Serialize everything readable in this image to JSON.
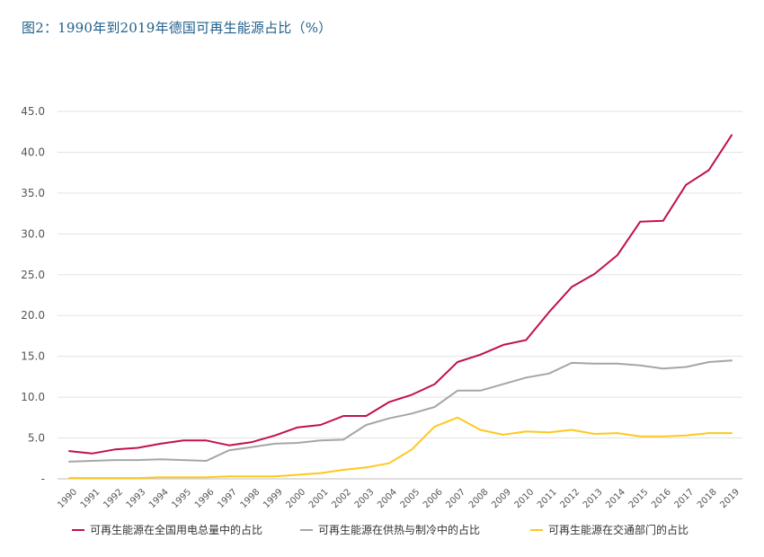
{
  "chart_data": {
    "type": "line",
    "title": "图2：1990年到2019年德国可再生能源占比（%）",
    "x": [
      "1990",
      "1991",
      "1992",
      "1993",
      "1994",
      "1995",
      "1996",
      "1997",
      "1998",
      "1999",
      "2000",
      "2001",
      "2002",
      "2003",
      "2004",
      "2005",
      "2006",
      "2007",
      "2008",
      "2009",
      "2010",
      "2011",
      "2012",
      "2013",
      "2014",
      "2015",
      "2016",
      "2017",
      "2018",
      "2019"
    ],
    "ylim": [
      0,
      45
    ],
    "yticks": [
      "-",
      "5.0",
      "10.0",
      "15.0",
      "20.0",
      "25.0",
      "30.0",
      "35.0",
      "40.0",
      "45.0"
    ],
    "grid": true,
    "legend_position": "bottom",
    "series": [
      {
        "name": "可再生能源在全国用电总量中的占比",
        "color": "#c0124a",
        "values": [
          3.4,
          3.1,
          3.6,
          3.8,
          4.3,
          4.7,
          4.7,
          4.1,
          4.5,
          5.3,
          6.3,
          6.6,
          7.7,
          7.7,
          9.4,
          10.3,
          11.6,
          14.3,
          15.2,
          16.4,
          17.0,
          20.4,
          23.5,
          25.1,
          27.4,
          31.5,
          31.6,
          36.0,
          37.8,
          42.1
        ]
      },
      {
        "name": "可再生能源在供热与制冷中的占比",
        "color": "#a6a6a6",
        "values": [
          2.1,
          2.2,
          2.3,
          2.3,
          2.4,
          2.3,
          2.2,
          3.5,
          3.9,
          4.3,
          4.4,
          4.7,
          4.8,
          6.6,
          7.4,
          8.0,
          8.8,
          10.8,
          10.8,
          11.6,
          12.4,
          12.9,
          14.2,
          14.1,
          14.1,
          13.9,
          13.5,
          13.7,
          14.3,
          14.5
        ]
      },
      {
        "name": "可再生能源在交通部门的占比",
        "color": "#ffc81e",
        "values": [
          0.1,
          0.1,
          0.1,
          0.1,
          0.2,
          0.2,
          0.2,
          0.3,
          0.3,
          0.3,
          0.5,
          0.7,
          1.1,
          1.4,
          1.9,
          3.6,
          6.4,
          7.5,
          6.0,
          5.4,
          5.8,
          5.7,
          6.0,
          5.5,
          5.6,
          5.2,
          5.2,
          5.3,
          5.6,
          5.6
        ]
      }
    ]
  }
}
